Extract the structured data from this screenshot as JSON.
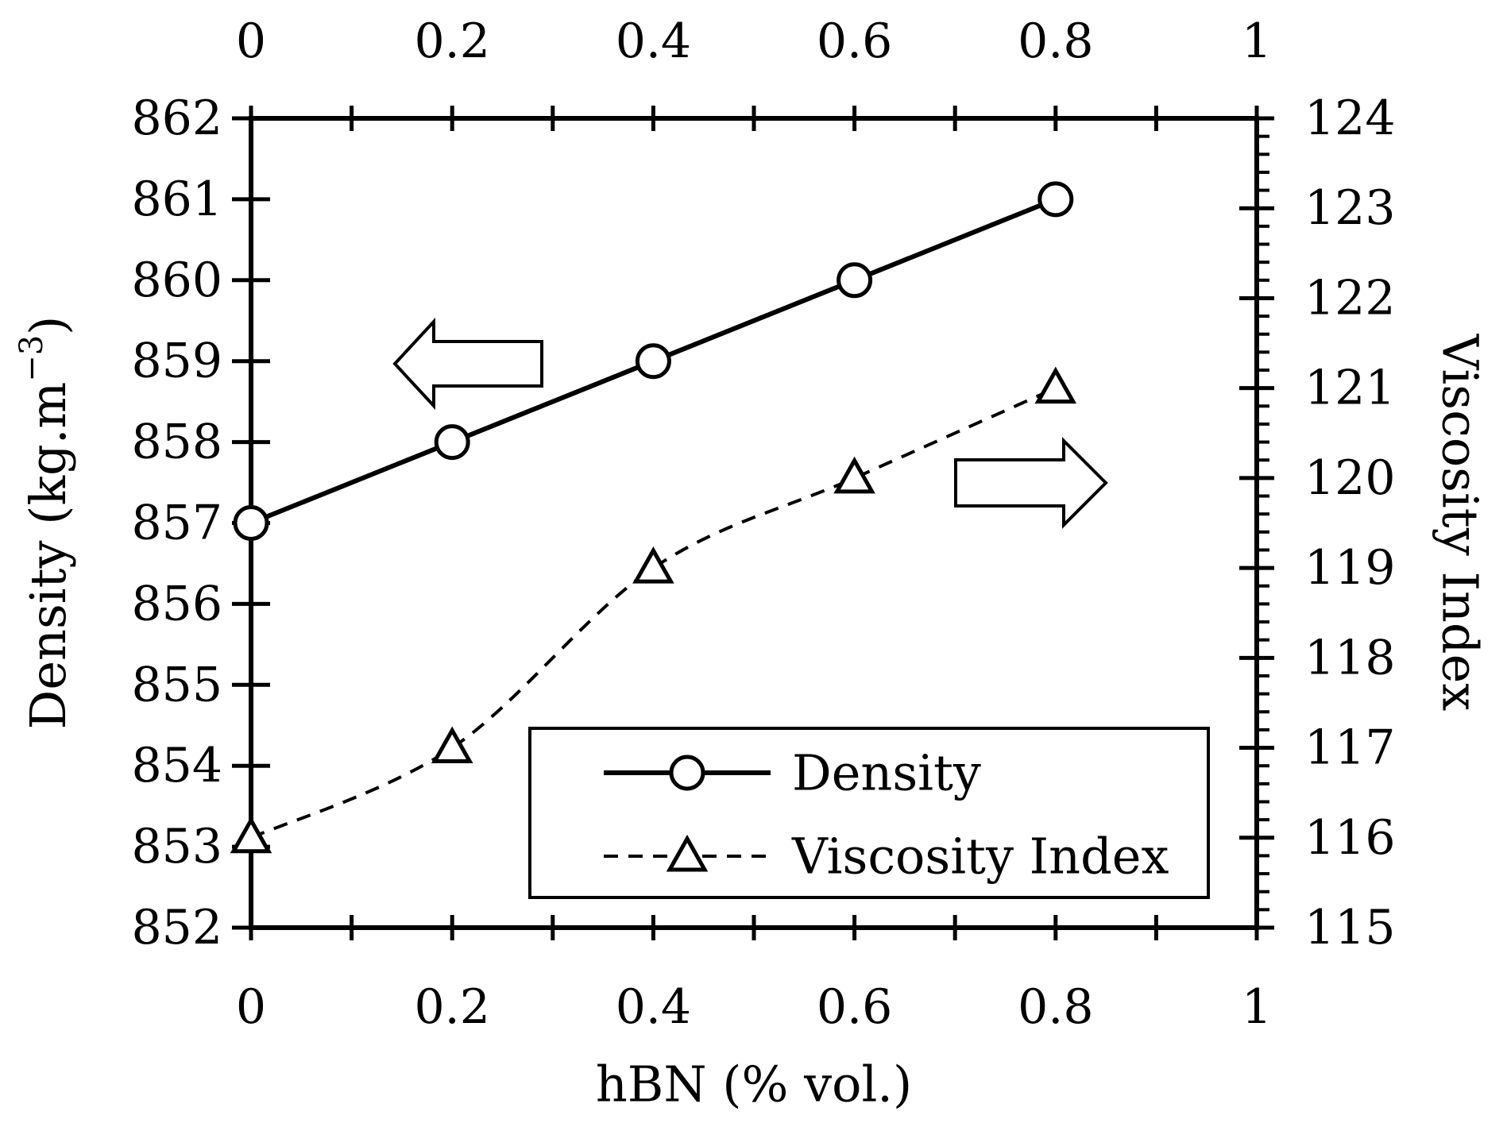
{
  "chart_data": {
    "type": "line",
    "xlabel": "hBN (% vol.)",
    "xlim": [
      0,
      1
    ],
    "x_ticks": [
      "0",
      "0.2",
      "0.4",
      "0.6",
      "0.8",
      "1"
    ],
    "ylabel_left_main": "Density (kg.m",
    "ylabel_left_exp": "−3",
    "ylabel_left_close": ")",
    "ylim_left": [
      852,
      862
    ],
    "y_ticks_left": [
      "852",
      "853",
      "854",
      "855",
      "856",
      "857",
      "858",
      "859",
      "860",
      "861",
      "862"
    ],
    "ylabel_right": "Viscosity Index",
    "ylim_right": [
      115,
      124
    ],
    "y_ticks_right": [
      "115",
      "116",
      "117",
      "118",
      "119",
      "120",
      "121",
      "122",
      "123",
      "124"
    ],
    "series": [
      {
        "name": "Density",
        "axis": "left",
        "marker": "circle",
        "line": "solid",
        "x": [
          0,
          0.2,
          0.4,
          0.6,
          0.8
        ],
        "values": [
          857,
          858,
          859,
          860,
          861
        ]
      },
      {
        "name": "Viscosity Index",
        "axis": "right",
        "marker": "triangle",
        "line": "dashed",
        "x": [
          0,
          0.2,
          0.4,
          0.6,
          0.8
        ],
        "values": [
          116,
          117,
          119,
          120,
          121
        ]
      }
    ],
    "legend": {
      "position": "bottom-right",
      "entries": [
        "Density",
        "Viscosity Index"
      ]
    },
    "annotations": [
      {
        "type": "arrow",
        "direction": "left",
        "refers_to": "Density"
      },
      {
        "type": "arrow",
        "direction": "right",
        "refers_to": "Viscosity Index"
      }
    ]
  }
}
